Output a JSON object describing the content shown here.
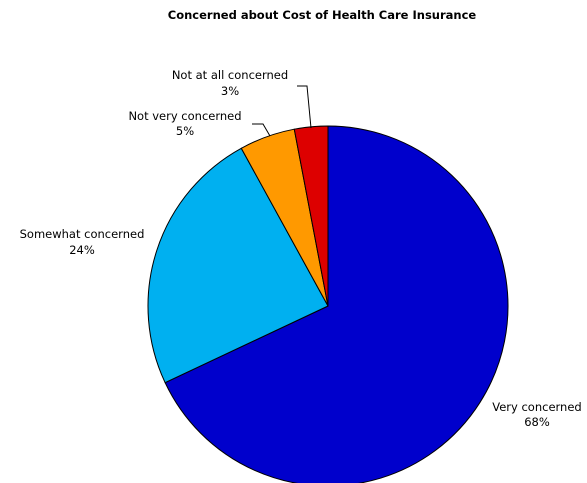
{
  "chart_data": {
    "type": "pie",
    "title": "Concerned about Cost of Health Care Insurance",
    "slices": [
      {
        "label": "Very concerned",
        "value": 68,
        "value_label": "68%",
        "color": "#0000CC"
      },
      {
        "label": "Somewhat concerned",
        "value": 24,
        "value_label": "24%",
        "color": "#00B0F0"
      },
      {
        "label": "Not very concerned",
        "value": 5,
        "value_label": "5%",
        "color": "#FF9900"
      },
      {
        "label": "Not at all concerned",
        "value": 3,
        "value_label": "3%",
        "color": "#DD0000"
      }
    ]
  }
}
